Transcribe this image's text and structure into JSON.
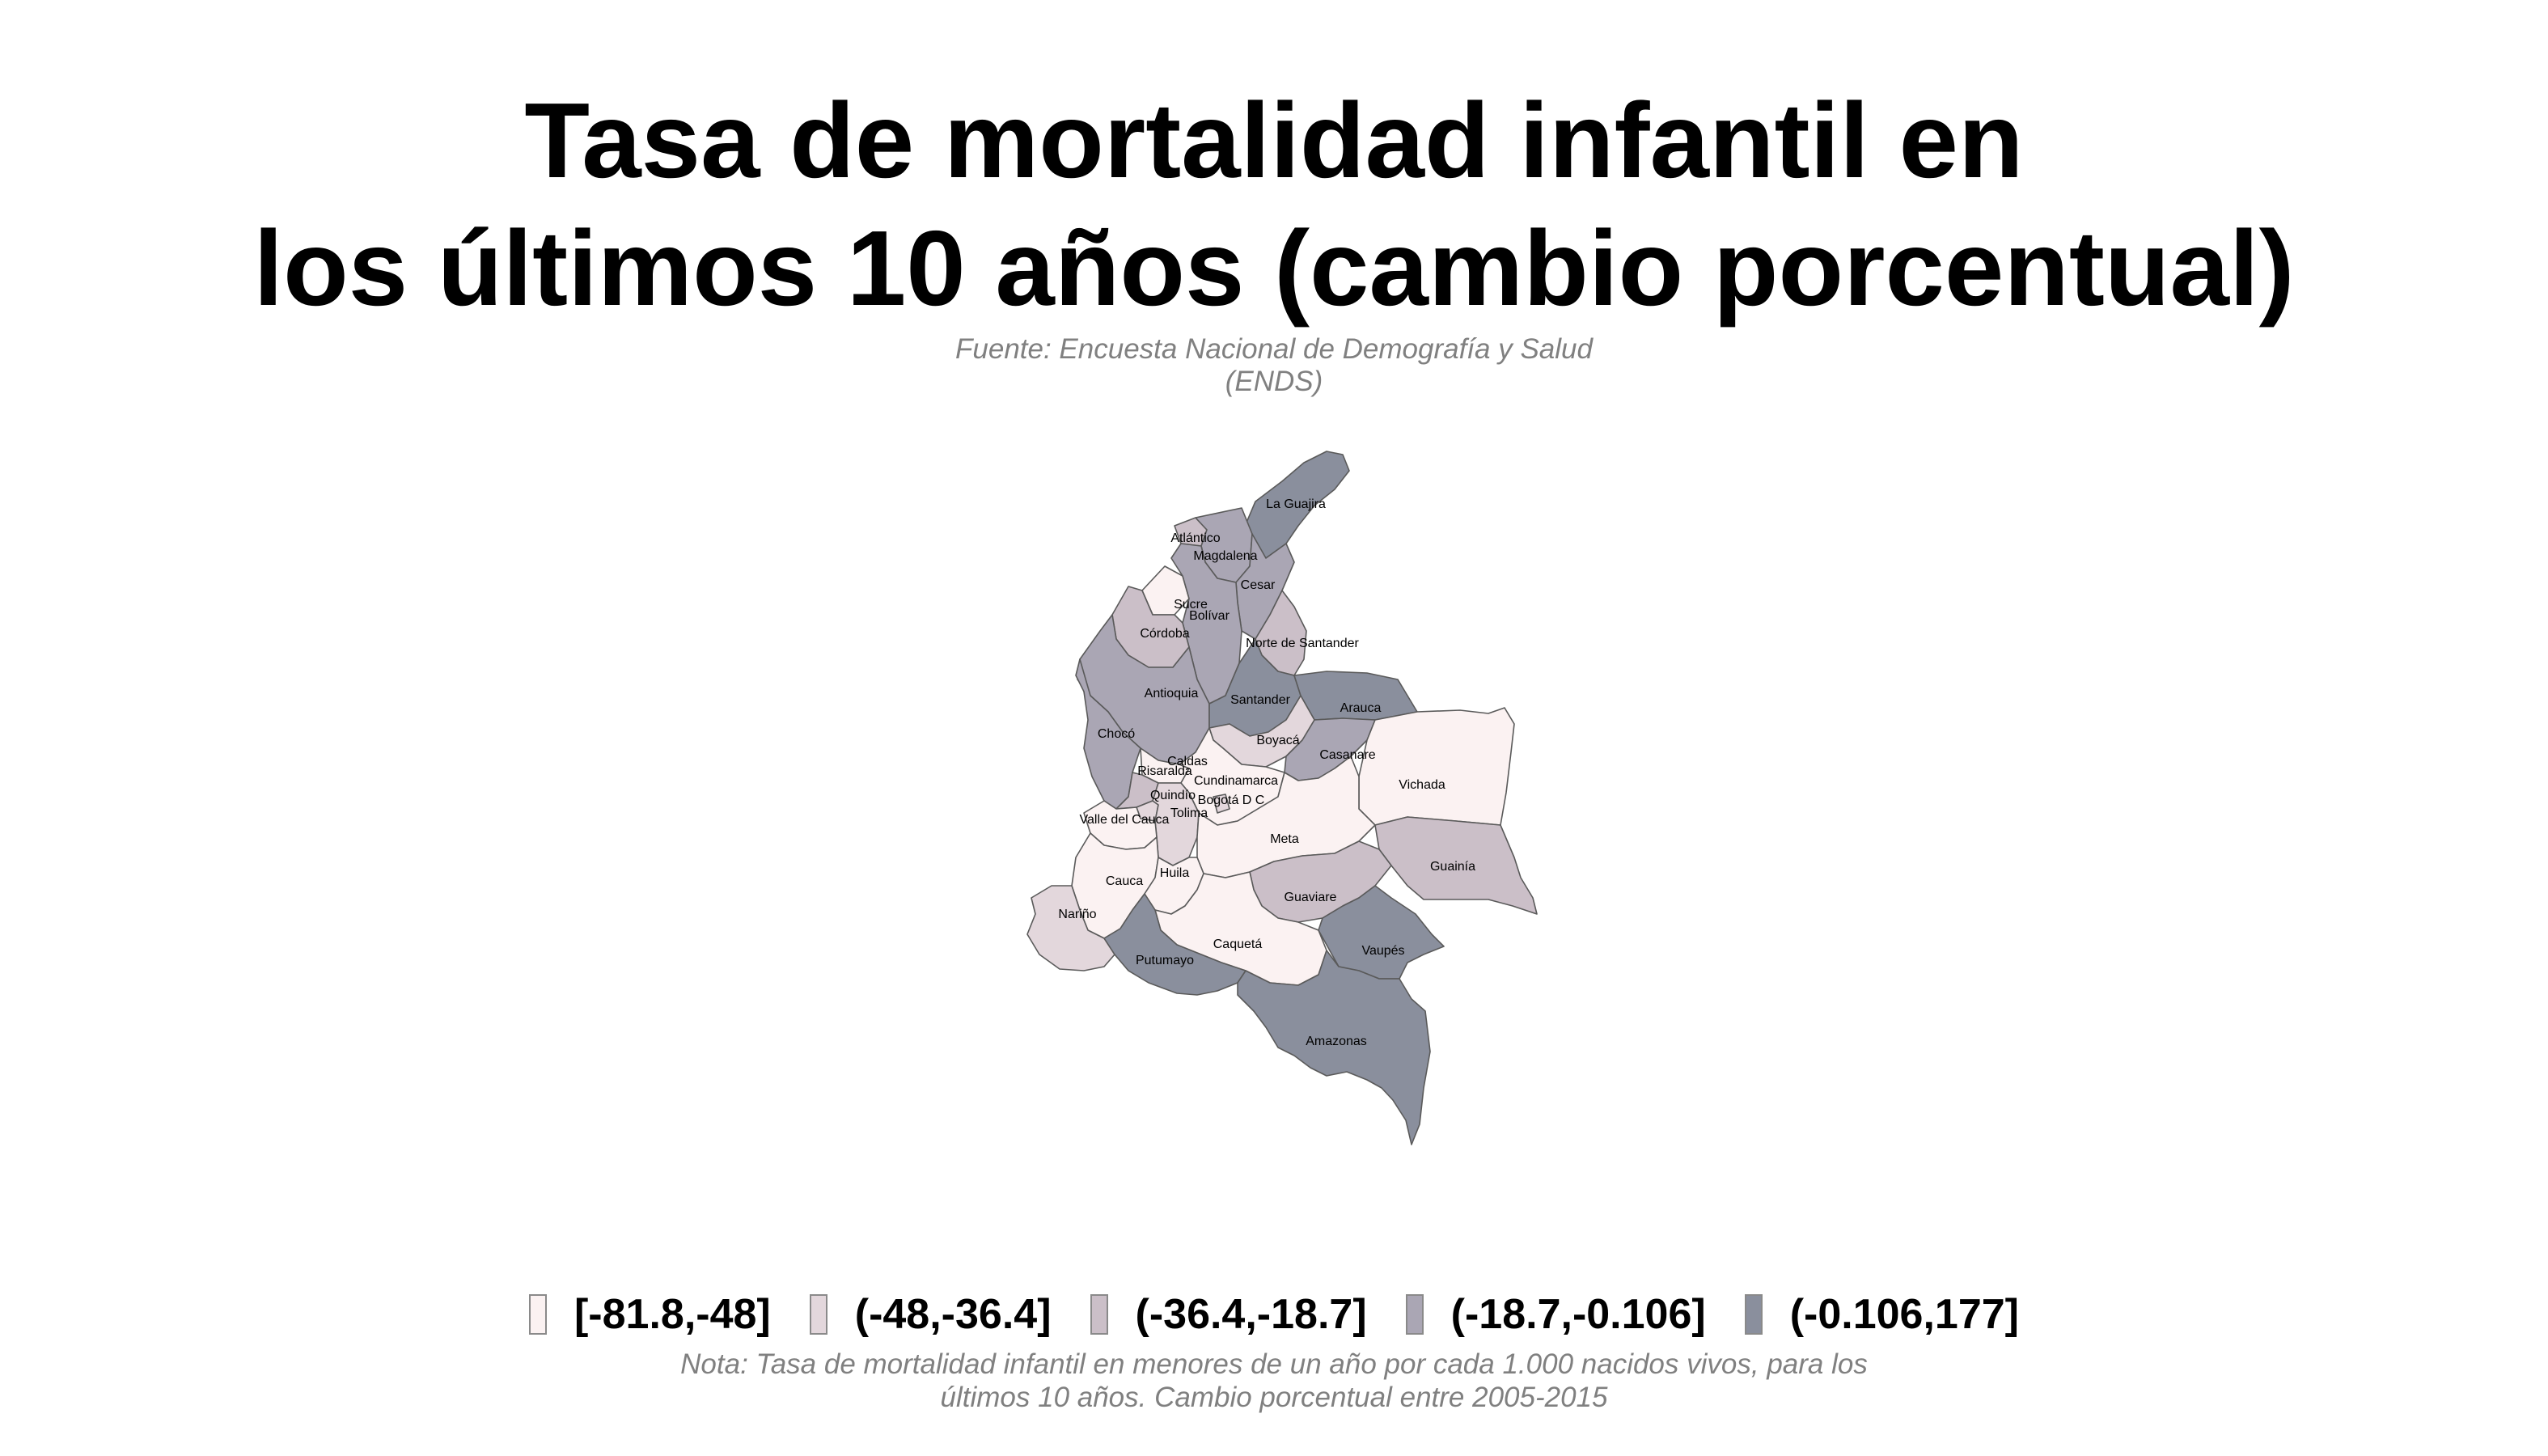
{
  "title": {
    "line1": "Tasa de mortalidad infantil en",
    "line2": "los últimos 10 años (cambio porcentual)"
  },
  "subtitle": {
    "line1": "Fuente: Encuesta Nacional de Demografía y Salud",
    "line2": "(ENDS)"
  },
  "colors": {
    "class1": "#fbf2f2",
    "class2": "#e3d7dc",
    "class3": "#cbbfc8",
    "class4": "#aaa6b4",
    "class5": "#8a8f9d",
    "border": "#5a5a5a"
  },
  "legend": [
    {
      "label": "[-81.8,-48]",
      "class": "class1"
    },
    {
      "label": "(-48,-36.4]",
      "class": "class2"
    },
    {
      "label": "(-36.4,-18.7]",
      "class": "class3"
    },
    {
      "label": "(-18.7,-0.106]",
      "class": "class4"
    },
    {
      "label": "(-0.106,177]",
      "class": "class5"
    }
  ],
  "departments": [
    {
      "name": "La Guajira",
      "class": "class5"
    },
    {
      "name": "Atlántico",
      "class": "class3"
    },
    {
      "name": "Magdalena",
      "class": "class4"
    },
    {
      "name": "Cesar",
      "class": "class4"
    },
    {
      "name": "Sucre",
      "class": "class1"
    },
    {
      "name": "Bolívar",
      "class": "class4"
    },
    {
      "name": "Córdoba",
      "class": "class3"
    },
    {
      "name": "Norte de Santander",
      "class": "class3"
    },
    {
      "name": "Antioquia",
      "class": "class4"
    },
    {
      "name": "Santander",
      "class": "class5"
    },
    {
      "name": "Arauca",
      "class": "class5"
    },
    {
      "name": "Chocó",
      "class": "class4"
    },
    {
      "name": "Boyacá",
      "class": "class2"
    },
    {
      "name": "Casanare",
      "class": "class4"
    },
    {
      "name": "Caldas",
      "class": "class1"
    },
    {
      "name": "Risaralda",
      "class": "class3"
    },
    {
      "name": "Cundinamarca",
      "class": "class1"
    },
    {
      "name": "Vichada",
      "class": "class1"
    },
    {
      "name": "Quindío",
      "class": "class2"
    },
    {
      "name": "Bogotá D C",
      "class": "class2"
    },
    {
      "name": "Tolima",
      "class": "class2"
    },
    {
      "name": "Valle del Cauca",
      "class": "class1"
    },
    {
      "name": "Meta",
      "class": "class1"
    },
    {
      "name": "Guainía",
      "class": "class3"
    },
    {
      "name": "Cauca",
      "class": "class1"
    },
    {
      "name": "Huila",
      "class": "class1"
    },
    {
      "name": "Guaviare",
      "class": "class3"
    },
    {
      "name": "Nariño",
      "class": "class2"
    },
    {
      "name": "Caquetá",
      "class": "class1"
    },
    {
      "name": "Vaupés",
      "class": "class5"
    },
    {
      "name": "Putumayo",
      "class": "class5"
    },
    {
      "name": "Amazonas",
      "class": "class5"
    }
  ],
  "note": {
    "line1": "Nota: Tasa de mortalidad infantil en menores de un año por cada 1.000 nacidos vivos, para los",
    "line2": "últimos 10 años. Cambio porcentual entre 2005-2015"
  }
}
